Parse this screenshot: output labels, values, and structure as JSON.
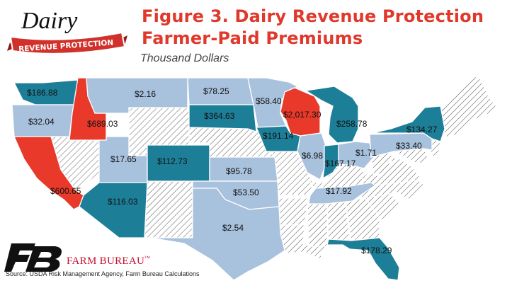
{
  "logo": {
    "script": "Dairy",
    "banner": "REVENUE PROTECTION"
  },
  "title_line1": "Figure 3. Dairy Revenue Protection",
  "title_line2": "Farmer-Paid Premiums",
  "subtitle": "Thousand Dollars",
  "publisher": "FARM BUREAU",
  "publisher_mark": "™",
  "source": "Source: USDA Risk Management Agency, Farm Bureau Calculations",
  "colors": {
    "high": "#e8392a",
    "mid": "#1d7e98",
    "low": "#a8c1dd",
    "none": "hatched-white"
  },
  "states": {
    "WA": "$186.88",
    "OR": "$32.04",
    "ID": "$689.03",
    "CA": "$600.65",
    "MT": "$2.16",
    "UT": "$17.65",
    "AZ": "$116.03",
    "CO": "$112.73",
    "ND": "$78.25",
    "SD": "$364.63",
    "KS": "$95.78",
    "OK": "$53.50",
    "TX": "$2.54",
    "MN": "$58.40",
    "IA": "$191.14",
    "WI": "$2,017.30",
    "MI": "$258.78",
    "IL": "$6.98",
    "IN": "$167.17",
    "OH": "$1.71",
    "PA": "$33.40",
    "NY": "$134.27",
    "TN": "$17.92",
    "FL": "$178.29"
  }
}
